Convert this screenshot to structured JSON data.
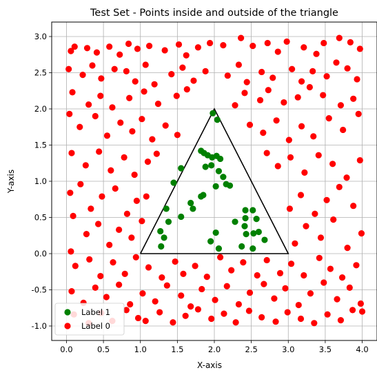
{
  "chart_data": {
    "type": "scatter",
    "title": "Test Set - Points inside and outside of the triangle",
    "xlabel": "X-axis",
    "ylabel": "Y-axis",
    "xlim": [
      -0.2,
      4.2
    ],
    "ylim": [
      -1.2,
      3.2
    ],
    "x_ticks": [
      "0.0",
      "0.5",
      "1.0",
      "1.5",
      "2.0",
      "2.5",
      "3.0",
      "3.5",
      "4.0"
    ],
    "y_ticks": [
      "-1.0",
      "-0.5",
      "0.0",
      "0.5",
      "1.0",
      "1.5",
      "2.0",
      "2.5",
      "3.0"
    ],
    "grid": true,
    "legend_position": "lower-left",
    "triangle": {
      "vertices": [
        [
          1,
          0
        ],
        [
          2,
          2
        ],
        [
          3,
          0
        ],
        [
          1,
          0
        ]
      ],
      "color": "#000000"
    },
    "series": [
      {
        "name": "Label 1",
        "color": "#008000",
        "points": [
          [
            1.98,
            1.94
          ],
          [
            2.04,
            1.85
          ],
          [
            1.82,
            1.42
          ],
          [
            1.86,
            1.39
          ],
          [
            1.91,
            1.36
          ],
          [
            1.97,
            1.33
          ],
          [
            2.03,
            1.35
          ],
          [
            2.08,
            1.31
          ],
          [
            1.88,
            1.2
          ],
          [
            1.96,
            1.22
          ],
          [
            2.06,
            1.14
          ],
          [
            2.12,
            1.06
          ],
          [
            2.16,
            0.96
          ],
          [
            2.21,
            0.94
          ],
          [
            2.02,
            0.93
          ],
          [
            1.55,
            1.18
          ],
          [
            1.45,
            0.98
          ],
          [
            1.85,
            0.81
          ],
          [
            1.82,
            0.79
          ],
          [
            1.68,
            0.7
          ],
          [
            1.71,
            0.62
          ],
          [
            1.35,
            0.62
          ],
          [
            1.55,
            0.51
          ],
          [
            1.38,
            0.44
          ],
          [
            1.27,
            0.31
          ],
          [
            1.32,
            0.22
          ],
          [
            1.28,
            0.1
          ],
          [
            2.02,
            0.29
          ],
          [
            1.95,
            0.17
          ],
          [
            2.06,
            0.07
          ],
          [
            2.28,
            0.44
          ],
          [
            2.42,
            0.6
          ],
          [
            2.42,
            0.49
          ],
          [
            2.41,
            0.38
          ],
          [
            2.43,
            0.27
          ],
          [
            2.37,
            0.1
          ],
          [
            2.52,
            0.6
          ],
          [
            2.57,
            0.48
          ],
          [
            2.6,
            0.3
          ],
          [
            2.53,
            0.28
          ],
          [
            2.52,
            0.07
          ],
          [
            2.68,
            0.19
          ]
        ]
      },
      {
        "name": "Label 0",
        "color": "#ff0000",
        "points": [
          [
            0.06,
            2.8
          ],
          [
            0.11,
            2.86
          ],
          [
            0.28,
            2.84
          ],
          [
            0.41,
            2.78
          ],
          [
            0.58,
            2.86
          ],
          [
            0.72,
            2.75
          ],
          [
            0.84,
            2.9
          ],
          [
            0.96,
            2.83
          ],
          [
            1.12,
            2.87
          ],
          [
            1.33,
            2.81
          ],
          [
            1.52,
            2.89
          ],
          [
            1.62,
            2.74
          ],
          [
            1.78,
            2.85
          ],
          [
            1.94,
            2.91
          ],
          [
            2.12,
            2.88
          ],
          [
            2.36,
            2.98
          ],
          [
            2.52,
            2.87
          ],
          [
            2.72,
            2.91
          ],
          [
            2.86,
            2.79
          ],
          [
            2.98,
            2.93
          ],
          [
            3.21,
            2.85
          ],
          [
            3.38,
            2.76
          ],
          [
            3.48,
            2.91
          ],
          [
            3.69,
            2.98
          ],
          [
            3.84,
            2.92
          ],
          [
            3.97,
            2.83
          ],
          [
            0.03,
            2.55
          ],
          [
            0.22,
            2.47
          ],
          [
            0.35,
            2.6
          ],
          [
            0.47,
            2.42
          ],
          [
            0.65,
            2.55
          ],
          [
            0.81,
            2.52
          ],
          [
            0.93,
            2.38
          ],
          [
            1.07,
            2.61
          ],
          [
            1.19,
            2.34
          ],
          [
            1.42,
            2.48
          ],
          [
            1.57,
            2.57
          ],
          [
            1.72,
            2.39
          ],
          [
            1.88,
            2.52
          ],
          [
            2.18,
            2.46
          ],
          [
            2.33,
            2.61
          ],
          [
            2.44,
            2.37
          ],
          [
            2.64,
            2.51
          ],
          [
            2.79,
            2.43
          ],
          [
            3.05,
            2.55
          ],
          [
            3.18,
            2.38
          ],
          [
            3.33,
            2.52
          ],
          [
            3.52,
            2.45
          ],
          [
            3.65,
            2.64
          ],
          [
            3.8,
            2.56
          ],
          [
            3.93,
            2.41
          ],
          [
            0.08,
            2.23
          ],
          [
            0.3,
            2.06
          ],
          [
            0.46,
            2.18
          ],
          [
            0.62,
            2.02
          ],
          [
            0.85,
            2.15
          ],
          [
            1.05,
            2.24
          ],
          [
            1.24,
            2.07
          ],
          [
            1.49,
            2.18
          ],
          [
            1.63,
            2.27
          ],
          [
            2.28,
            2.05
          ],
          [
            2.41,
            2.22
          ],
          [
            2.62,
            2.12
          ],
          [
            2.73,
            2.26
          ],
          [
            2.94,
            2.09
          ],
          [
            3.13,
            2.16
          ],
          [
            3.29,
            2.3
          ],
          [
            3.47,
            2.19
          ],
          [
            3.71,
            2.05
          ],
          [
            3.88,
            2.14
          ],
          [
            0.04,
            1.93
          ],
          [
            0.18,
            1.75
          ],
          [
            0.39,
            1.9
          ],
          [
            0.55,
            1.63
          ],
          [
            0.73,
            1.81
          ],
          [
            0.89,
            1.69
          ],
          [
            1.02,
            1.86
          ],
          [
            1.16,
            1.58
          ],
          [
            1.34,
            1.77
          ],
          [
            1.5,
            1.64
          ],
          [
            2.48,
            1.78
          ],
          [
            2.66,
            1.67
          ],
          [
            2.84,
            1.84
          ],
          [
            3.01,
            1.57
          ],
          [
            3.18,
            1.76
          ],
          [
            3.34,
            1.62
          ],
          [
            3.55,
            1.87
          ],
          [
            3.74,
            1.71
          ],
          [
            3.95,
            1.93
          ],
          [
            0.07,
            1.39
          ],
          [
            0.26,
            1.22
          ],
          [
            0.44,
            1.41
          ],
          [
            0.6,
            1.15
          ],
          [
            0.78,
            1.33
          ],
          [
            0.92,
            1.09
          ],
          [
            1.1,
            1.27
          ],
          [
            1.22,
            1.38
          ],
          [
            2.71,
            1.39
          ],
          [
            2.86,
            1.21
          ],
          [
            3.03,
            1.33
          ],
          [
            3.22,
            1.12
          ],
          [
            3.41,
            1.36
          ],
          [
            3.6,
            1.24
          ],
          [
            3.79,
            1.05
          ],
          [
            3.97,
            1.29
          ],
          [
            0.05,
            0.84
          ],
          [
            0.19,
            0.96
          ],
          [
            0.33,
            0.62
          ],
          [
            0.48,
            0.79
          ],
          [
            0.66,
            0.9
          ],
          [
            0.82,
            0.55
          ],
          [
            0.95,
            0.73
          ],
          [
            1.08,
            0.79
          ],
          [
            3.02,
            0.62
          ],
          [
            3.17,
            0.81
          ],
          [
            3.36,
            0.55
          ],
          [
            3.52,
            0.74
          ],
          [
            3.69,
            0.92
          ],
          [
            3.88,
            0.66
          ],
          [
            0.09,
            0.52
          ],
          [
            0.27,
            0.27
          ],
          [
            0.43,
            0.41
          ],
          [
            0.58,
            0.12
          ],
          [
            0.71,
            0.33
          ],
          [
            0.88,
            0.22
          ],
          [
            1.02,
            0.45
          ],
          [
            3.09,
            0.14
          ],
          [
            3.24,
            0.38
          ],
          [
            3.44,
            0.22
          ],
          [
            3.61,
            0.47
          ],
          [
            3.8,
            0.08
          ],
          [
            3.99,
            0.28
          ],
          [
            0.06,
            0.03
          ],
          [
            0.12,
            -0.17
          ],
          [
            0.31,
            -0.08
          ],
          [
            0.46,
            -0.31
          ],
          [
            0.63,
            -0.12
          ],
          [
            0.79,
            -0.28
          ],
          [
            0.94,
            -0.05
          ],
          [
            1.11,
            -0.19
          ],
          [
            1.29,
            -0.33
          ],
          [
            1.47,
            -0.11
          ],
          [
            1.58,
            -0.28
          ],
          [
            1.74,
            -0.17
          ],
          [
            1.9,
            -0.32
          ],
          [
            2.08,
            -0.05
          ],
          [
            2.23,
            -0.23
          ],
          [
            2.39,
            -0.12
          ],
          [
            2.58,
            -0.3
          ],
          [
            2.71,
            -0.09
          ],
          [
            2.89,
            -0.27
          ],
          [
            3.04,
            -0.14
          ],
          [
            3.21,
            -0.3
          ],
          [
            3.42,
            -0.06
          ],
          [
            3.57,
            -0.21
          ],
          [
            3.73,
            -0.33
          ],
          [
            3.92,
            -0.16
          ],
          [
            0.07,
            -0.52
          ],
          [
            0.23,
            -0.68
          ],
          [
            0.39,
            -0.47
          ],
          [
            0.54,
            -0.6
          ],
          [
            0.71,
            -0.43
          ],
          [
            0.86,
            -0.7
          ],
          [
            1.03,
            -0.55
          ],
          [
            1.2,
            -0.66
          ],
          [
            1.36,
            -0.44
          ],
          [
            1.55,
            -0.58
          ],
          [
            1.68,
            -0.73
          ],
          [
            1.83,
            -0.49
          ],
          [
            2.01,
            -0.64
          ],
          [
            2.17,
            -0.45
          ],
          [
            2.33,
            -0.7
          ],
          [
            2.48,
            -0.54
          ],
          [
            2.67,
            -0.42
          ],
          [
            2.81,
            -0.62
          ],
          [
            2.96,
            -0.48
          ],
          [
            3.14,
            -0.71
          ],
          [
            3.3,
            -0.55
          ],
          [
            3.48,
            -0.4
          ],
          [
            3.66,
            -0.63
          ],
          [
            3.83,
            -0.47
          ],
          [
            3.98,
            -0.69
          ],
          [
            0.1,
            -0.84
          ],
          [
            0.3,
            -0.96
          ],
          [
            0.47,
            -0.82
          ],
          [
            0.62,
            -0.93
          ],
          [
            0.81,
            -0.78
          ],
          [
            0.97,
            -0.89
          ],
          [
            1.07,
            -0.93
          ],
          [
            1.26,
            -0.81
          ],
          [
            1.44,
            -0.95
          ],
          [
            1.61,
            -0.86
          ],
          [
            1.78,
            -0.77
          ],
          [
            1.96,
            -0.9
          ],
          [
            2.13,
            -0.83
          ],
          [
            2.29,
            -0.95
          ],
          [
            2.47,
            -0.79
          ],
          [
            2.64,
            -0.88
          ],
          [
            2.83,
            -0.94
          ],
          [
            2.99,
            -0.81
          ],
          [
            3.17,
            -0.9
          ],
          [
            3.35,
            -0.96
          ],
          [
            3.53,
            -0.84
          ],
          [
            3.71,
            -0.92
          ],
          [
            3.87,
            -0.78
          ],
          [
            4.0,
            -0.8
          ]
        ]
      }
    ]
  }
}
